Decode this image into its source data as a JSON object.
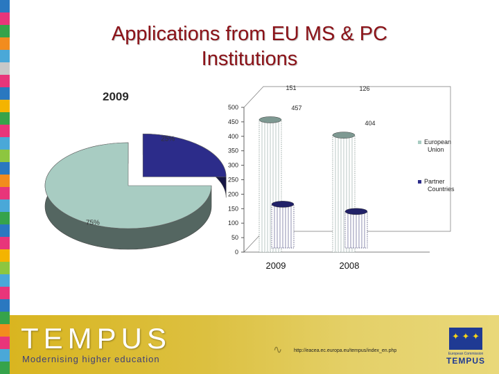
{
  "slide": {
    "title_line1": "Applications from EU MS & PC",
    "title_line2": "Institutions"
  },
  "chart_data": [
    {
      "type": "pie",
      "title": "2009",
      "slices": [
        {
          "label": "25%",
          "value": 25,
          "color": "#2c2c8a"
        },
        {
          "label": "75%",
          "value": 75,
          "color": "#a8ccc2"
        }
      ]
    },
    {
      "type": "bar",
      "categories": [
        "2009",
        "2008"
      ],
      "series": [
        {
          "name": "European Union",
          "values": [
            457,
            404
          ],
          "color": "#a8ccc2"
        },
        {
          "name": "Partner Countries",
          "values": [
            151,
            126
          ],
          "color": "#2c2c8a"
        }
      ],
      "yticks": [
        0,
        50,
        100,
        150,
        200,
        250,
        300,
        350,
        400,
        450,
        500
      ],
      "ylim": [
        0,
        500
      ],
      "legend": "right"
    }
  ],
  "footer": {
    "brand": "TEMPUS",
    "tagline": "Modernising higher education",
    "url": "http://eacea.ec.europa.eu/tempus/index_en.php",
    "logo_caption": "European Commission",
    "logo_brand": "TEMPUS",
    "stars": "✦ ✦ ✦"
  },
  "colors": {
    "title": "#8b1218",
    "eu": "#a8ccc2",
    "pc": "#2c2c8a",
    "footer": "#dcc040"
  }
}
